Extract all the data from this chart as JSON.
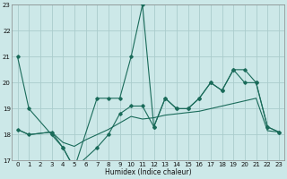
{
  "background_color": "#cce8e8",
  "grid_color": "#aacccc",
  "line_color": "#1a6b5a",
  "xlabel": "Humidex (Indice chaleur)",
  "xlim": [
    -0.5,
    23.5
  ],
  "ylim": [
    17,
    23
  ],
  "yticks": [
    17,
    18,
    19,
    20,
    21,
    22,
    23
  ],
  "xticks": [
    0,
    1,
    2,
    3,
    4,
    5,
    6,
    7,
    8,
    9,
    10,
    11,
    12,
    13,
    14,
    15,
    16,
    17,
    18,
    19,
    20,
    21,
    22,
    23
  ],
  "s1_x": [
    0,
    1,
    3,
    4,
    5,
    7,
    8,
    9,
    10,
    11,
    12,
    13,
    14,
    15,
    16,
    17,
    18,
    19,
    20,
    21,
    22,
    23
  ],
  "s1_y": [
    21.0,
    19.0,
    18.0,
    17.5,
    16.7,
    19.4,
    19.4,
    19.4,
    21.0,
    23.0,
    18.3,
    19.4,
    19.0,
    19.0,
    19.4,
    20.0,
    19.7,
    20.5,
    20.0,
    20.0,
    18.3,
    18.1
  ],
  "s2_x": [
    0,
    1,
    2,
    3,
    4,
    5,
    6,
    7,
    8,
    9,
    10,
    11,
    12,
    13,
    14,
    15,
    16,
    17,
    18,
    19,
    20,
    21,
    22,
    23
  ],
  "s2_y": [
    18.2,
    18.0,
    18.05,
    18.1,
    17.7,
    17.55,
    17.8,
    18.0,
    18.2,
    18.45,
    18.7,
    18.6,
    18.65,
    18.75,
    18.8,
    18.85,
    18.9,
    19.0,
    19.1,
    19.2,
    19.3,
    19.4,
    18.15,
    18.1
  ],
  "s3_x": [
    0,
    1,
    3,
    4,
    5,
    7,
    8,
    9,
    10,
    11,
    12,
    13,
    14,
    15,
    16,
    17,
    18,
    19,
    20,
    21,
    22,
    23
  ],
  "s3_y": [
    18.2,
    18.0,
    18.1,
    17.5,
    16.7,
    17.5,
    18.0,
    18.8,
    19.1,
    19.1,
    18.3,
    19.4,
    19.0,
    19.0,
    19.4,
    20.0,
    19.7,
    20.5,
    20.5,
    20.0,
    18.3,
    18.1
  ]
}
